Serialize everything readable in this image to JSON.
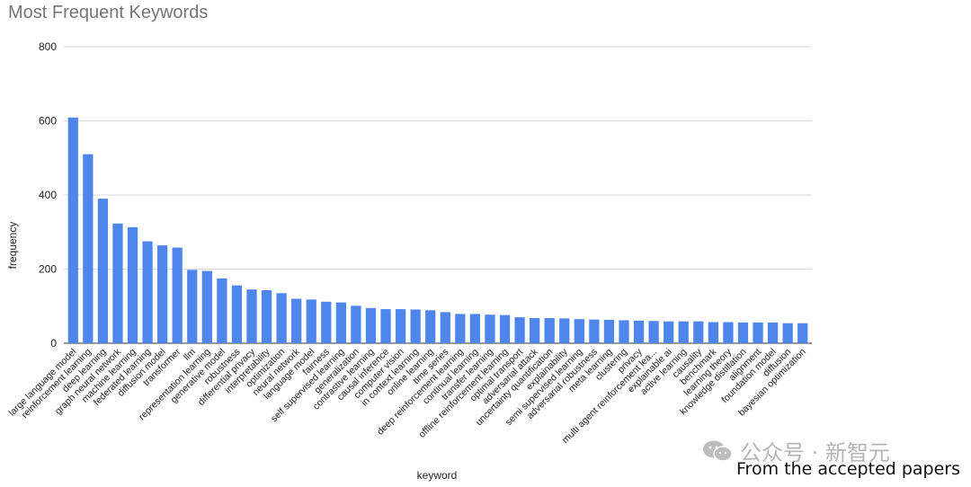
{
  "chart_data": {
    "type": "bar",
    "title": "Most Frequent Keywords",
    "xlabel": "keyword",
    "ylabel": "frequency",
    "ylim": [
      0,
      800
    ],
    "yticks": [
      0,
      200,
      400,
      600,
      800
    ],
    "grid": true,
    "legend": "none",
    "bar_color": "#4e86ec",
    "categories": [
      "large language model",
      "reinforcement learning",
      "deep learning",
      "graph neural network",
      "machine learning",
      "federated learning",
      "diffusion model",
      "transformer",
      "llm",
      "representation learning",
      "generative model",
      "robustness",
      "differential privacy",
      "interpretability",
      "optimization",
      "neural network",
      "language model",
      "fairness",
      "self supervised learning",
      "generalization",
      "contrastive learning",
      "causal inference",
      "computer vision",
      "in context learning",
      "online learning",
      "time series",
      "deep reinforcement learning",
      "continual learning",
      "transfer learning",
      "offline reinforcement learning",
      "optimal transport",
      "adversarial attack",
      "uncertainty quantification",
      "explainability",
      "semi supervised learning",
      "adversarial robustness",
      "meta learning",
      "clustering",
      "privacy",
      "multi agent reinforcement lea...",
      "explainable ai",
      "active learning",
      "causality",
      "benchmark",
      "learning theory",
      "knowledge distillation",
      "alignment",
      "foundation model",
      "diffusion",
      "bayesian optimization"
    ],
    "values": [
      609,
      510,
      390,
      323,
      313,
      275,
      264,
      258,
      198,
      195,
      175,
      156,
      145,
      143,
      135,
      120,
      118,
      112,
      110,
      101,
      95,
      92,
      92,
      91,
      89,
      84,
      79,
      79,
      77,
      76,
      70,
      68,
      68,
      67,
      65,
      64,
      63,
      62,
      61,
      60,
      59,
      59,
      59,
      57,
      57,
      56,
      56,
      56,
      54,
      54
    ]
  },
  "watermark": {
    "text": "公众号 · 新智元",
    "icon": "wechat-icon"
  },
  "caption": "From the accepted papers"
}
